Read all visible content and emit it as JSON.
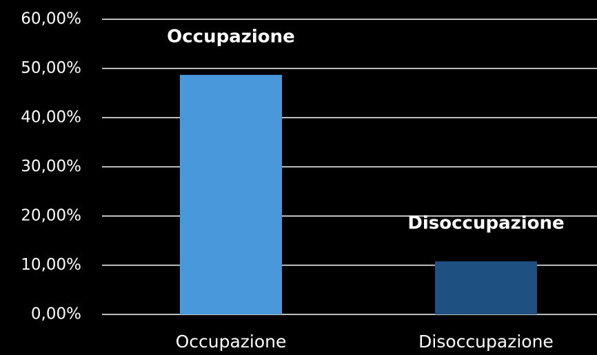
{
  "chart_data": {
    "type": "bar",
    "categories": [
      "Occupazione",
      "Disoccupazione"
    ],
    "values": [
      48.7,
      10.8
    ],
    "colors": [
      "#4a98dc",
      "#1d5081"
    ],
    "annotations": [
      "Occupazione",
      "Disoccupazione"
    ],
    "ylim": [
      0,
      60
    ],
    "yticks": [
      {
        "value": 0,
        "label": "0,00%"
      },
      {
        "value": 10,
        "label": "10,00%"
      },
      {
        "value": 20,
        "label": "20,00%"
      },
      {
        "value": 30,
        "label": "30,00%"
      },
      {
        "value": 40,
        "label": "40,00%"
      },
      {
        "value": 50,
        "label": "50,00%"
      },
      {
        "value": 60,
        "label": "60,00%"
      }
    ],
    "grid": true
  }
}
